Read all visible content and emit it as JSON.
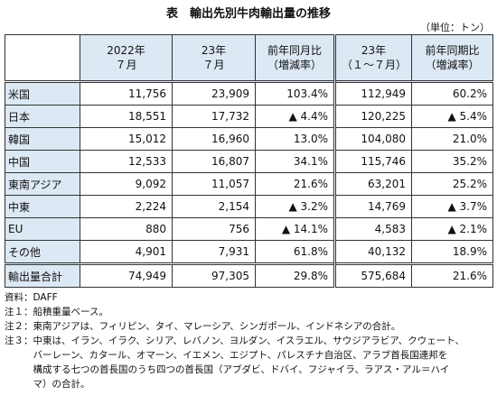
{
  "header": {
    "title": "表　輸出先別牛肉輸出量の推移",
    "unit": "（単位：トン）"
  },
  "table": {
    "columns": [
      [
        "2022年",
        "７月"
      ],
      [
        "23年",
        "７月"
      ],
      [
        "前年同月比",
        "（増減率）"
      ],
      [
        "23年",
        "（１～７月）"
      ],
      [
        "前年同期比",
        "（増減率）"
      ]
    ],
    "rows": [
      [
        "米国",
        "11,756",
        "23,909",
        "103.4%",
        "112,949",
        "60.2%"
      ],
      [
        "日本",
        "18,551",
        "17,732",
        "▲ 4.4%",
        "120,225",
        "▲ 5.4%"
      ],
      [
        "韓国",
        "15,012",
        "16,960",
        "13.0%",
        "104,080",
        "21.0%"
      ],
      [
        "中国",
        "12,533",
        "16,807",
        "34.1%",
        "115,746",
        "35.2%"
      ],
      [
        "東南アジア",
        "9,092",
        "11,057",
        "21.6%",
        "63,201",
        "25.2%"
      ],
      [
        "中東",
        "2,224",
        "2,154",
        "▲ 3.2%",
        "14,769",
        "▲ 3.7%"
      ],
      [
        "EU",
        "880",
        "756",
        "▲ 14.1%",
        "4,583",
        "▲ 2.1%"
      ],
      [
        "その他",
        "4,901",
        "7,931",
        "61.8%",
        "40,132",
        "18.9%"
      ],
      [
        "輸出量合計",
        "74,949",
        "97,305",
        "29.8%",
        "575,684",
        "21.6%"
      ]
    ]
  },
  "notes": [
    {
      "label": "資料：",
      "lines": [
        "DAFF"
      ]
    },
    {
      "label": "注１：",
      "lines": [
        "船積重量ベース。"
      ]
    },
    {
      "label": "注２：",
      "lines": [
        "東南アジアは、フィリピン、タイ、マレーシア、シンガポール、インドネシアの合計。"
      ]
    },
    {
      "label": "注３：",
      "lines": [
        "中東は、イラン、イラク、シリア、レバノン、ヨルダン、イスラエル、サウジアラビア、クウェート、",
        "バーレーン、カタール、オマーン、イエメン、エジプト、パレスチナ自治区、アラブ首長国連邦を",
        "構成する七つの首長国のうち四つの首長国（アブダビ、ドバイ、フジャイラ、ラアス・アル＝ハイ",
        "マ）の合計。"
      ]
    }
  ]
}
